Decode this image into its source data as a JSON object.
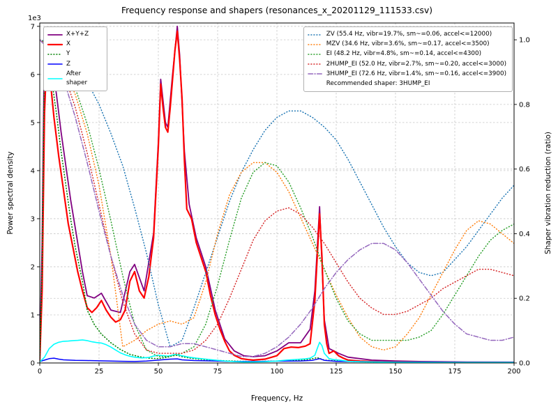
{
  "title": "Frequency response and shapers (resonances_x_20201129_111533.csv)",
  "axes": {
    "x": {
      "label": "Frequency, Hz",
      "min": 0,
      "max": 200,
      "ticks": [
        0,
        25,
        50,
        75,
        100,
        125,
        150,
        175,
        200
      ]
    },
    "y_left": {
      "label": "Power spectral density",
      "offset": "1e3",
      "ticks": [
        0,
        1,
        2,
        3,
        4,
        5,
        6,
        7
      ]
    },
    "y_right": {
      "label": "Shaper vibration reduction (ratio)",
      "ticks": [
        0.0,
        0.2,
        0.4,
        0.6,
        0.8,
        1.0
      ]
    }
  },
  "legend": {
    "recommended": "Recommended shaper: 3HUMP_EI"
  },
  "chart_data": {
    "type": "line",
    "title": "Frequency response and shapers (resonances_x_20201129_111533.csv)",
    "xlabel": "Frequency, Hz",
    "ylabel_left": "Power spectral density",
    "ylabel_right": "Shaper vibration reduction (ratio)",
    "x_range": [
      0,
      200
    ],
    "y_left_range": [
      0,
      7070
    ],
    "y_right_range": [
      0,
      1.052
    ],
    "grid": true,
    "legend_psd_position": "upper left",
    "legend_shapers_position": "upper right",
    "series": [
      {
        "id": "x-y-z",
        "label": "X+Y+Z",
        "legend_group": "psd",
        "axis": "left",
        "color": "#800080",
        "style": "solid",
        "width": 1.8,
        "x": [
          0,
          1,
          2,
          3,
          5,
          7,
          9,
          11,
          13,
          15,
          18,
          20,
          23,
          26,
          30,
          34,
          38,
          40,
          44,
          48,
          50,
          51,
          53,
          54,
          56,
          58,
          59,
          61,
          63,
          66,
          70,
          74,
          78,
          82,
          86,
          90,
          95,
          100,
          105,
          110,
          114,
          116,
          118,
          120,
          122,
          126,
          130,
          140,
          150,
          160,
          180,
          200
        ],
        "y": [
          60,
          2500,
          6900,
          6800,
          6300,
          5600,
          4800,
          4100,
          3400,
          2800,
          1900,
          1400,
          1350,
          1450,
          1100,
          1050,
          1900,
          2050,
          1500,
          2700,
          4600,
          5900,
          5000,
          4900,
          6000,
          7000,
          6400,
          4400,
          3300,
          2600,
          2000,
          1100,
          500,
          250,
          150,
          130,
          150,
          250,
          420,
          420,
          700,
          1500,
          3250,
          900,
          300,
          200,
          120,
          60,
          40,
          30,
          20,
          18
        ]
      },
      {
        "id": "x",
        "label": "X",
        "legend_group": "psd",
        "axis": "left",
        "color": "#ff0000",
        "style": "solid",
        "width": 2.2,
        "x": [
          0,
          1,
          2,
          3,
          4,
          5,
          6,
          7,
          8,
          9,
          10,
          12,
          14,
          16,
          18,
          20,
          22,
          24,
          26,
          28,
          30,
          32,
          34,
          36,
          38,
          40,
          42,
          44,
          46,
          48,
          50,
          51,
          52,
          53,
          54,
          55,
          56,
          57,
          58,
          59,
          60,
          61,
          62,
          64,
          66,
          68,
          70,
          72,
          74,
          76,
          78,
          80,
          82,
          85,
          88,
          90,
          95,
          100,
          103,
          106,
          109,
          112,
          114,
          116,
          117,
          118,
          119,
          120,
          121,
          122,
          124,
          126,
          128,
          130,
          132,
          135,
          140,
          145,
          150,
          160,
          170,
          180,
          190,
          200
        ],
        "y": [
          50,
          1500,
          5200,
          6400,
          6100,
          5600,
          5100,
          4700,
          4300,
          3950,
          3600,
          2900,
          2400,
          1900,
          1500,
          1150,
          1050,
          1150,
          1300,
          1100,
          950,
          850,
          900,
          1100,
          1700,
          1900,
          1500,
          1350,
          1800,
          2600,
          4500,
          5800,
          5300,
          4900,
          4800,
          5300,
          5900,
          6500,
          6900,
          6300,
          5500,
          4200,
          3200,
          3000,
          2500,
          2200,
          1900,
          1400,
          1000,
          700,
          450,
          250,
          160,
          90,
          70,
          60,
          80,
          150,
          300,
          330,
          320,
          350,
          400,
          1300,
          2200,
          3100,
          2200,
          800,
          400,
          200,
          250,
          150,
          100,
          60,
          50,
          40,
          30,
          25,
          20,
          15,
          12,
          10,
          10,
          10
        ]
      },
      {
        "id": "y",
        "label": "Y",
        "legend_group": "psd",
        "axis": "left",
        "color": "#008000",
        "style": "dotted",
        "width": 1.6,
        "x": [
          0,
          1,
          2,
          3,
          5,
          7,
          9,
          11,
          13,
          15,
          18,
          20,
          23,
          26,
          30,
          34,
          38,
          42,
          46,
          50,
          54,
          56,
          58,
          60,
          64,
          68,
          72,
          76,
          80,
          85,
          90,
          95,
          100,
          105,
          110,
          114,
          117,
          120,
          124,
          128,
          132,
          140,
          150,
          160,
          180,
          200
        ],
        "y": [
          40,
          2000,
          6600,
          6400,
          5900,
          5200,
          4400,
          3700,
          3000,
          2400,
          1700,
          1100,
          800,
          600,
          420,
          280,
          180,
          130,
          100,
          90,
          120,
          150,
          160,
          130,
          95,
          75,
          60,
          50,
          42,
          35,
          30,
          35,
          40,
          50,
          55,
          80,
          110,
          60,
          45,
          35,
          30,
          22,
          15,
          12,
          10,
          10
        ]
      },
      {
        "id": "z",
        "label": "Z",
        "legend_group": "psd",
        "axis": "left",
        "color": "#0000ff",
        "style": "solid",
        "width": 1.5,
        "x": [
          0,
          2,
          4,
          6,
          8,
          10,
          15,
          20,
          25,
          30,
          35,
          40,
          45,
          50,
          55,
          58,
          60,
          65,
          70,
          75,
          80,
          90,
          100,
          110,
          115,
          118,
          120,
          125,
          130,
          140,
          150,
          160,
          180,
          200
        ],
        "y": [
          30,
          60,
          90,
          100,
          80,
          65,
          55,
          50,
          45,
          40,
          35,
          30,
          40,
          60,
          80,
          85,
          65,
          50,
          45,
          40,
          32,
          30,
          38,
          42,
          55,
          90,
          55,
          35,
          30,
          25,
          20,
          18,
          15,
          15
        ]
      },
      {
        "id": "after-shaper",
        "label": "After shaper",
        "legend_group": "psd",
        "axis": "left",
        "color": "#00ffff",
        "style": "solid",
        "width": 1.6,
        "x": [
          0,
          2,
          4,
          6,
          8,
          10,
          12,
          14,
          16,
          18,
          20,
          22,
          24,
          26,
          28,
          30,
          32,
          34,
          36,
          38,
          40,
          43,
          46,
          48,
          50,
          52,
          54,
          56,
          57,
          59,
          61,
          63,
          66,
          70,
          74,
          78,
          82,
          86,
          90,
          95,
          100,
          104,
          108,
          112,
          114,
          116,
          117,
          118,
          119,
          120,
          122,
          124,
          127,
          130,
          135,
          140,
          150,
          160,
          180,
          200
        ],
        "y": [
          20,
          120,
          300,
          390,
          430,
          450,
          455,
          465,
          470,
          480,
          465,
          440,
          425,
          415,
          380,
          330,
          270,
          210,
          170,
          140,
          120,
          105,
          115,
          145,
          160,
          150,
          140,
          165,
          180,
          160,
          140,
          120,
          100,
          80,
          60,
          40,
          28,
          20,
          20,
          26,
          40,
          60,
          72,
          85,
          100,
          160,
          300,
          430,
          360,
          200,
          90,
          70,
          55,
          35,
          25,
          20,
          15,
          12,
          10,
          10
        ]
      },
      {
        "id": "zv",
        "label": "ZV (55.4 Hz, vibr=19.7%, sm~=0.06, accel<=12000)",
        "legend_group": "shapers",
        "axis": "right",
        "color": "#1f77b4",
        "style": "dotted",
        "width": 1.5,
        "x": [
          0,
          5,
          10,
          15,
          20,
          25,
          30,
          35,
          40,
          45,
          50,
          55,
          60,
          65,
          70,
          75,
          80,
          85,
          90,
          95,
          100,
          105,
          110,
          115,
          120,
          125,
          130,
          135,
          140,
          145,
          150,
          155,
          160,
          165,
          170,
          175,
          180,
          185,
          190,
          195,
          200
        ],
        "y": [
          1.0,
          0.99,
          0.97,
          0.93,
          0.87,
          0.8,
          0.71,
          0.61,
          0.48,
          0.34,
          0.18,
          0.05,
          0.07,
          0.17,
          0.28,
          0.39,
          0.5,
          0.59,
          0.66,
          0.72,
          0.76,
          0.78,
          0.78,
          0.76,
          0.73,
          0.69,
          0.63,
          0.56,
          0.49,
          0.42,
          0.36,
          0.31,
          0.28,
          0.27,
          0.28,
          0.32,
          0.36,
          0.41,
          0.46,
          0.51,
          0.55
        ]
      },
      {
        "id": "mzv",
        "label": "MZV (34.6 Hz, vibr=3.6%, sm~=0.17, accel<=3500)",
        "legend_group": "shapers",
        "axis": "right",
        "color": "#ff7f0e",
        "style": "dotted",
        "width": 1.5,
        "x": [
          0,
          5,
          10,
          15,
          20,
          25,
          30,
          35,
          40,
          45,
          50,
          55,
          60,
          65,
          70,
          75,
          80,
          85,
          90,
          95,
          100,
          105,
          110,
          115,
          120,
          125,
          130,
          135,
          140,
          145,
          150,
          155,
          160,
          165,
          170,
          175,
          180,
          185,
          190,
          195,
          200
        ],
        "y": [
          1.0,
          0.98,
          0.92,
          0.83,
          0.71,
          0.55,
          0.33,
          0.05,
          0.07,
          0.1,
          0.12,
          0.13,
          0.12,
          0.14,
          0.25,
          0.4,
          0.52,
          0.59,
          0.62,
          0.62,
          0.59,
          0.53,
          0.45,
          0.37,
          0.29,
          0.21,
          0.14,
          0.08,
          0.05,
          0.04,
          0.05,
          0.09,
          0.14,
          0.21,
          0.28,
          0.35,
          0.41,
          0.44,
          0.43,
          0.4,
          0.37
        ]
      },
      {
        "id": "ei",
        "label": "EI (48.2 Hz, vibr=4.8%, sm~=0.14, accel<=4300)",
        "legend_group": "shapers",
        "axis": "right",
        "color": "#2ca02c",
        "style": "dotted",
        "width": 1.5,
        "x": [
          0,
          5,
          10,
          15,
          20,
          25,
          30,
          35,
          40,
          45,
          50,
          55,
          60,
          65,
          70,
          75,
          80,
          85,
          90,
          95,
          100,
          105,
          110,
          115,
          120,
          125,
          130,
          135,
          140,
          145,
          150,
          155,
          160,
          165,
          170,
          175,
          180,
          185,
          190,
          195,
          200
        ],
        "y": [
          1.0,
          0.98,
          0.93,
          0.85,
          0.74,
          0.6,
          0.44,
          0.27,
          0.12,
          0.04,
          0.02,
          0.02,
          0.03,
          0.05,
          0.12,
          0.24,
          0.38,
          0.51,
          0.59,
          0.62,
          0.61,
          0.56,
          0.48,
          0.39,
          0.29,
          0.2,
          0.13,
          0.09,
          0.07,
          0.07,
          0.07,
          0.07,
          0.08,
          0.1,
          0.15,
          0.21,
          0.27,
          0.33,
          0.38,
          0.41,
          0.43
        ]
      },
      {
        "id": "2hump-ei",
        "label": "2HUMP_EI (52.0 Hz, vibr=2.7%, sm~=0.20, accel<=3000)",
        "legend_group": "shapers",
        "axis": "right",
        "color": "#d62728",
        "style": "dotted",
        "width": 1.5,
        "x": [
          0,
          5,
          10,
          15,
          20,
          25,
          30,
          35,
          40,
          45,
          50,
          55,
          60,
          65,
          70,
          75,
          80,
          85,
          90,
          95,
          100,
          105,
          110,
          115,
          120,
          125,
          130,
          135,
          140,
          145,
          150,
          155,
          160,
          165,
          170,
          175,
          180,
          185,
          190,
          195,
          200
        ],
        "y": [
          1.0,
          0.97,
          0.9,
          0.79,
          0.65,
          0.49,
          0.33,
          0.19,
          0.09,
          0.04,
          0.03,
          0.03,
          0.03,
          0.04,
          0.07,
          0.12,
          0.2,
          0.29,
          0.38,
          0.44,
          0.47,
          0.48,
          0.46,
          0.42,
          0.37,
          0.31,
          0.25,
          0.2,
          0.17,
          0.15,
          0.15,
          0.16,
          0.18,
          0.2,
          0.23,
          0.25,
          0.27,
          0.29,
          0.29,
          0.28,
          0.27
        ]
      },
      {
        "id": "3hump-ei",
        "label": "3HUMP_EI (72.6 Hz, vibr=1.4%, sm~=0.16, accel<=3900)",
        "legend_group": "shapers",
        "axis": "right",
        "color": "#9467bd",
        "style": "dashdot",
        "width": 1.5,
        "x": [
          0,
          5,
          10,
          15,
          20,
          25,
          30,
          35,
          40,
          45,
          50,
          55,
          60,
          65,
          70,
          75,
          80,
          85,
          90,
          95,
          100,
          105,
          110,
          115,
          120,
          125,
          130,
          135,
          140,
          145,
          150,
          155,
          160,
          165,
          170,
          175,
          180,
          185,
          190,
          195,
          200
        ],
        "y": [
          1.0,
          0.96,
          0.88,
          0.76,
          0.62,
          0.47,
          0.33,
          0.21,
          0.12,
          0.07,
          0.05,
          0.05,
          0.06,
          0.06,
          0.05,
          0.04,
          0.03,
          0.02,
          0.02,
          0.03,
          0.05,
          0.08,
          0.12,
          0.17,
          0.23,
          0.28,
          0.32,
          0.35,
          0.37,
          0.37,
          0.35,
          0.31,
          0.26,
          0.21,
          0.16,
          0.12,
          0.09,
          0.08,
          0.07,
          0.07,
          0.08
        ]
      }
    ]
  }
}
